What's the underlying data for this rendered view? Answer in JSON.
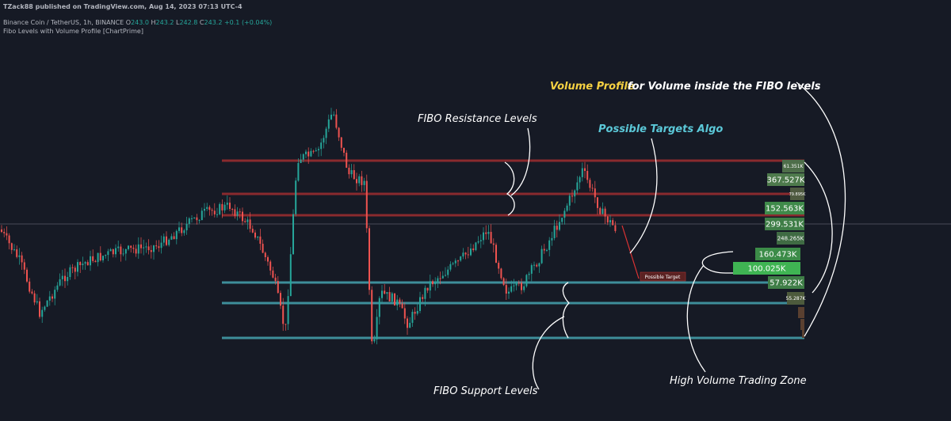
{
  "header": {
    "publisher": "TZack88 published on TradingView.com, Aug 14, 2023 07:13 UTC-4",
    "symbol": "Binance Coin / TetherUS, 1h, BINANCE",
    "ohlc": [
      {
        "key": "O",
        "value": "243.0"
      },
      {
        "key": "H",
        "value": "243.2"
      },
      {
        "key": "L",
        "value": "242.8"
      },
      {
        "key": "C",
        "value": "243.2"
      }
    ],
    "change": "+0.1 (+0.04%)",
    "indicator": "Fibo Levels with Volume Profile [ChartPrime]"
  },
  "annotations": {
    "volume_profile_title": "Volume Profile",
    "volume_profile_text": "for Volume inside the FIBO levels",
    "resistance": "FIBO Resistance Levels",
    "targets": "Possible Targets Algo",
    "support": "FIBO Support Levels",
    "high_volume": "High Volume Trading Zone"
  },
  "target_label": "Possible Target",
  "volume_profile": [
    "61.351K",
    "367.527K",
    "79.895K",
    "152.563K",
    "299.531K",
    "248.265K",
    "160.473K",
    "100.025K",
    "57.922K",
    "55.287K"
  ]
}
